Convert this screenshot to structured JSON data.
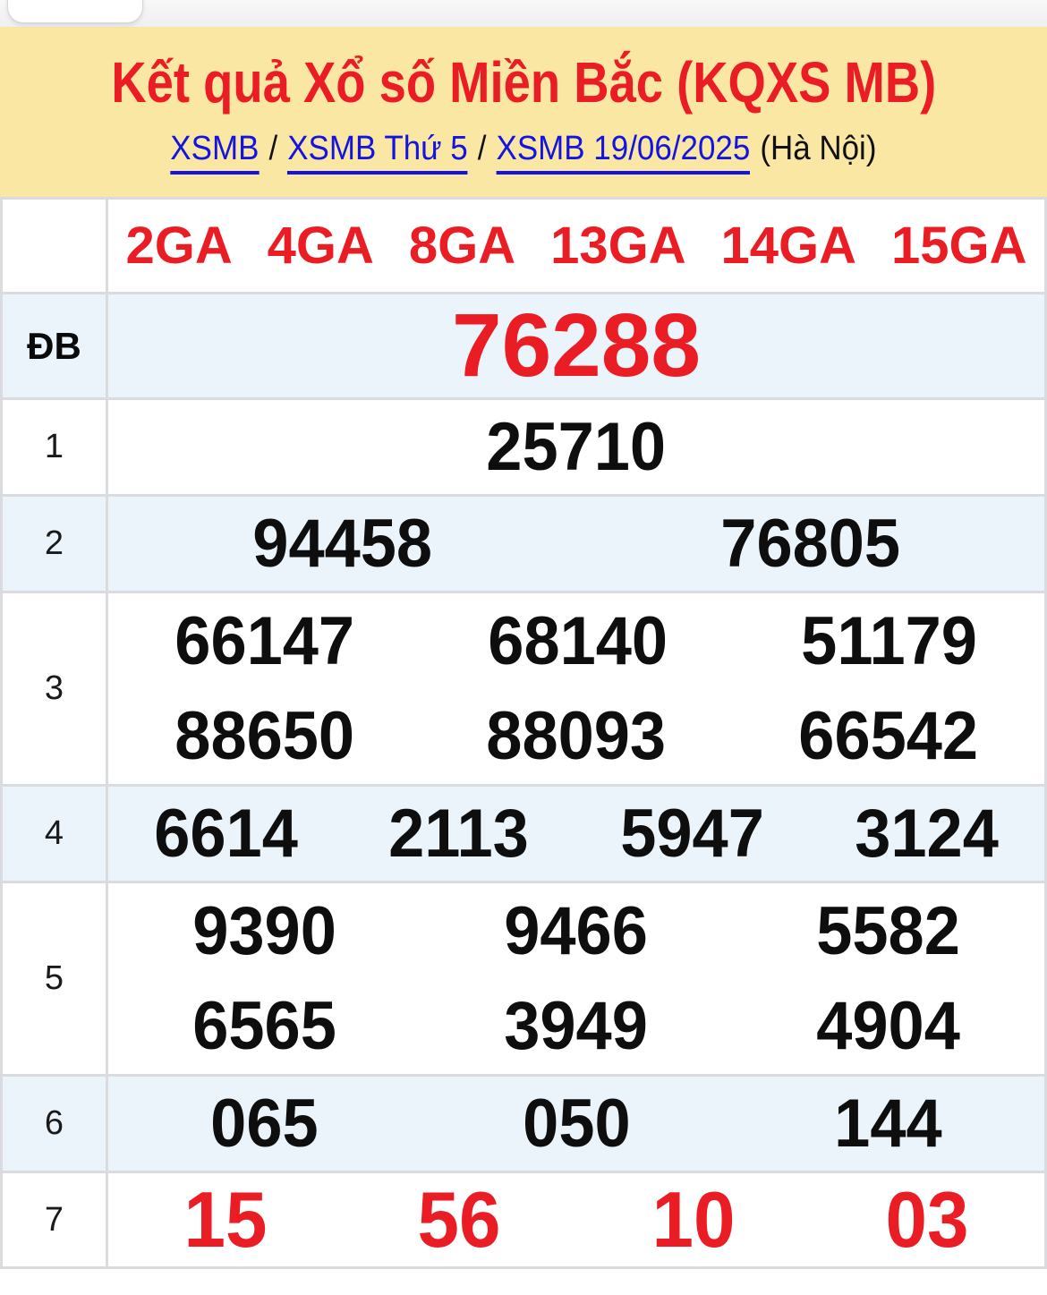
{
  "header": {
    "title": "Kết quả Xổ số Miền Bắc (KQXS MB)",
    "breadcrumb": {
      "link1": "XSMB",
      "sep1": "/",
      "link2": "XSMB Thứ 5",
      "sep2": "/",
      "link3": "XSMB 19/06/2025",
      "suffix": "(Hà Nội)"
    }
  },
  "table": {
    "ga_labels": [
      "2GA",
      "4GA",
      "8GA",
      "13GA",
      "14GA",
      "15GA"
    ],
    "rows": [
      {
        "label": "ĐB",
        "type": "special",
        "striped": true,
        "tall": false,
        "lines": [
          [
            "76288"
          ]
        ]
      },
      {
        "label": "1",
        "type": "black",
        "striped": false,
        "tall": false,
        "lines": [
          [
            "25710"
          ]
        ]
      },
      {
        "label": "2",
        "type": "black",
        "striped": true,
        "tall": false,
        "lines": [
          [
            "94458",
            "76805"
          ]
        ]
      },
      {
        "label": "3",
        "type": "black",
        "striped": false,
        "tall": true,
        "lines": [
          [
            "66147",
            "68140",
            "51179"
          ],
          [
            "88650",
            "88093",
            "66542"
          ]
        ]
      },
      {
        "label": "4",
        "type": "black",
        "striped": true,
        "tall": false,
        "lines": [
          [
            "6614",
            "2113",
            "5947",
            "3124"
          ]
        ]
      },
      {
        "label": "5",
        "type": "black",
        "striped": false,
        "tall": true,
        "lines": [
          [
            "9390",
            "9466",
            "5582"
          ],
          [
            "6565",
            "3949",
            "4904"
          ]
        ]
      },
      {
        "label": "6",
        "type": "black",
        "striped": true,
        "tall": false,
        "lines": [
          [
            "065",
            "050",
            "144"
          ]
        ]
      },
      {
        "label": "7",
        "type": "red",
        "striped": false,
        "tall": false,
        "lines": [
          [
            "15",
            "56",
            "10",
            "03"
          ]
        ]
      }
    ]
  },
  "colors": {
    "accent_red": "#EA1D25",
    "header_bg": "#FAE7A3",
    "stripe_bg": "#EBF4FB",
    "link_blue": "#1414E0",
    "border": "#D9DBDE"
  }
}
